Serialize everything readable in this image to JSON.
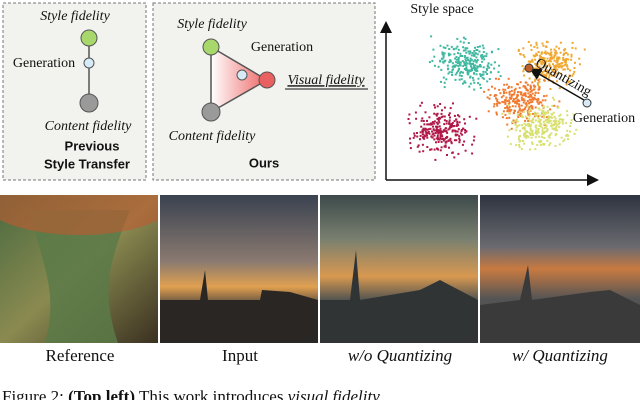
{
  "previous": {
    "style": "Style fidelity",
    "generation": "Generation",
    "content": "Content fidelity",
    "title": [
      "Previous",
      "Style Transfer"
    ]
  },
  "ours": {
    "style": "Style fidelity",
    "generation": "Generation",
    "visual": "Visual fidelity",
    "content": "Content fidelity",
    "title": "Ours"
  },
  "space": {
    "title": "Style space",
    "arrow": "Quantizing",
    "generation": "Generation"
  },
  "images": [
    "Reference",
    "Input",
    "w/o Quantizing",
    "w/ Quantizing"
  ],
  "caption": {
    "label": "Figure 2:",
    "bold": "(Top left)",
    "text": "This work introduces",
    "emph": "visual fidelity"
  }
}
